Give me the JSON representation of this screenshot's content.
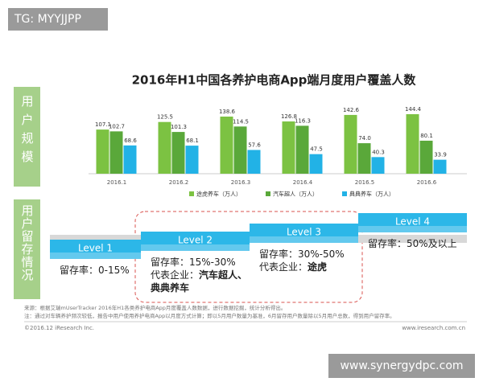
{
  "watermark": "TG: MYYJJPP",
  "side_labels": [
    "用户规模",
    "用户留存情况"
  ],
  "chart_data": {
    "type": "bar",
    "title": "2016年H1中国各养护电商App端月度用户覆盖人数",
    "categories": [
      "2016.1",
      "2016.2",
      "2016.3",
      "2016.4",
      "2016.5",
      "2016.6"
    ],
    "series": [
      {
        "name": "途虎养车（万人）",
        "color": "#7cc242",
        "values": [
          107.1,
          125.5,
          138.6,
          126.8,
          142.6,
          144.4
        ],
        "value_labels": [
          "107.1",
          "125.5",
          "138.6",
          "126.8",
          "142.6",
          "144.4"
        ]
      },
      {
        "name": "汽车超人（万人）",
        "color": "#5aa83a",
        "values": [
          102.7,
          101.3,
          114.5,
          116.3,
          74.0,
          80.1
        ],
        "value_labels": [
          "102.7",
          "101.3",
          "114.5",
          "116.3",
          "74.0",
          "80.1"
        ]
      },
      {
        "name": "典典养车（万人）",
        "color": "#22b2e6",
        "values": [
          68.6,
          68.1,
          57.6,
          47.5,
          40.3,
          33.9
        ],
        "value_labels": [
          "68.6",
          "68.1",
          "57.6",
          "47.5",
          "40.3",
          "33.9"
        ]
      }
    ]
  },
  "retention": {
    "levels": [
      {
        "label": "Level 1",
        "lines": [
          [
            {
              "text": "留存率：0-15%",
              "bold": false
            }
          ]
        ]
      },
      {
        "label": "Level 2",
        "lines": [
          [
            {
              "text": "留存率：15%-30%",
              "bold": false
            }
          ],
          [
            {
              "text": "代表企业：",
              "bold": false
            },
            {
              "text": "汽车超人、",
              "bold": true
            }
          ],
          [
            {
              "text": "典典养车",
              "bold": true
            }
          ]
        ]
      },
      {
        "label": "Level 3",
        "lines": [
          [
            {
              "text": "留存率：30%-50%",
              "bold": false
            }
          ],
          [
            {
              "text": "代表企业：",
              "bold": false
            },
            {
              "text": "途虎",
              "bold": true
            }
          ]
        ]
      },
      {
        "label": "Level 4",
        "lines": [
          [
            {
              "text": "留存率：50%及以上",
              "bold": false
            }
          ]
        ]
      }
    ]
  },
  "footer": {
    "source": "来源：根据艾瑞mUserTracker 2016年H1各类养护电商App月度覆盖人数数据，进行数据挖掘，统计分析得出。",
    "note": "注：通过对车辆养护频次较低，报告中用户使用养护电商App以月度方式计算；即以5月用户数量为基准，6月留存用户数量除以5月用户总数，得到用户留存率。",
    "copyright": "©2016.12 iResearch Inc.",
    "site": "www.iresearch.com.cn"
  },
  "site_watermark": "www.synergydpc.com"
}
